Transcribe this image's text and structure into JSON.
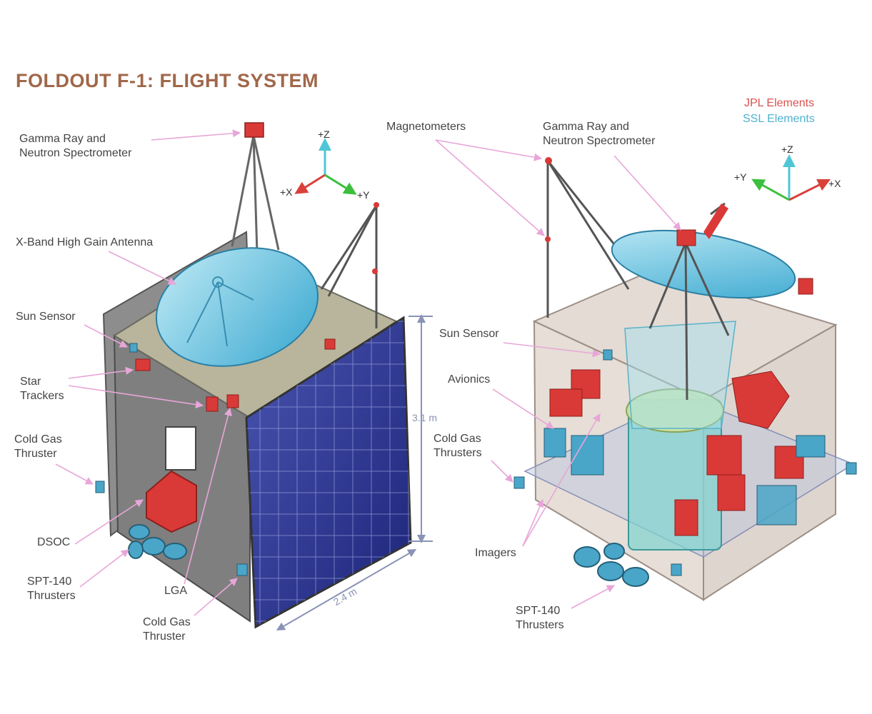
{
  "title": "FOLDOUT F-1: FLIGHT SYSTEM",
  "legend": {
    "jpl": "JPL Elements",
    "ssl": "SSL Elements"
  },
  "colors": {
    "jpl": "#d9534f",
    "ssl": "#4fb3cf",
    "title": "#a0674a",
    "leader": "#e8a6d8"
  },
  "left_view": {
    "axes": {
      "z": "+Z",
      "x": "+X",
      "y": "+Y"
    },
    "dimensions": {
      "height": "3.1 m",
      "width": "2.4 m"
    },
    "labels": {
      "grns": [
        "Gamma Ray and",
        "Neutron Spectrometer"
      ],
      "hga": "X-Band High Gain Antenna",
      "sun_sensor": "Sun Sensor",
      "star_trackers": [
        "Star",
        "Trackers"
      ],
      "cold_gas_left": [
        "Cold Gas",
        "Thruster"
      ],
      "dsoc": "DSOC",
      "spt": [
        "SPT-140",
        "Thrusters"
      ],
      "lga": "LGA",
      "cold_gas_bottom": [
        "Cold Gas",
        "Thruster"
      ]
    }
  },
  "right_view": {
    "axes": {
      "z": "+Z",
      "x": "+X",
      "y": "+Y"
    },
    "labels": {
      "magnetometers": "Magnetometers",
      "grns": [
        "Gamma Ray and",
        "Neutron Spectrometer"
      ],
      "sun_sensor": "Sun Sensor",
      "avionics": "Avionics",
      "cold_gas": [
        "Cold Gas",
        "Thrusters"
      ],
      "imagers": "Imagers",
      "spt": [
        "SPT-140",
        "Thrusters"
      ]
    }
  }
}
